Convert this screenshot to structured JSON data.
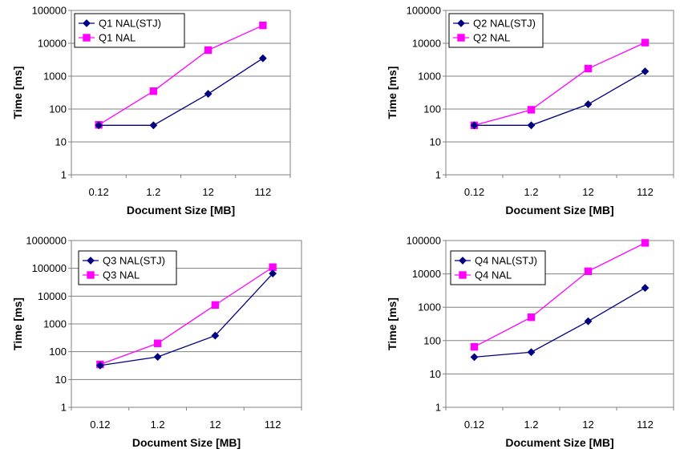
{
  "chart_data": [
    {
      "type": "line",
      "categories": [
        "0.12",
        "1.2",
        "12",
        "112"
      ],
      "xlabel": "Document Size [MB]",
      "ylabel": "Time [ms]",
      "yscale": "log",
      "ylim": [
        1,
        100000
      ],
      "yticks": [
        "1",
        "10",
        "100",
        "1000",
        "10000",
        "100000"
      ],
      "grid": true,
      "legend": "top-left",
      "series": [
        {
          "name": "Q1 NAL(STJ)",
          "color": "#000080",
          "marker": "diamond",
          "values": [
            32,
            32,
            290,
            3500
          ]
        },
        {
          "name": "Q1 NAL",
          "color": "#ff00ff",
          "marker": "square",
          "values": [
            33,
            350,
            6200,
            35000
          ]
        }
      ]
    },
    {
      "type": "line",
      "categories": [
        "0.12",
        "1.2",
        "12",
        "112"
      ],
      "xlabel": "Document Size [MB]",
      "ylabel": "Time [ms]",
      "yscale": "log",
      "ylim": [
        1,
        100000
      ],
      "yticks": [
        "1",
        "10",
        "100",
        "1000",
        "10000",
        "100000"
      ],
      "grid": true,
      "legend": "top-left",
      "series": [
        {
          "name": "Q2 NAL(STJ)",
          "color": "#000080",
          "marker": "diamond",
          "values": [
            32,
            32,
            140,
            1400
          ]
        },
        {
          "name": "Q2 NAL",
          "color": "#ff00ff",
          "marker": "square",
          "values": [
            32,
            95,
            1700,
            10500
          ]
        }
      ]
    },
    {
      "type": "line",
      "categories": [
        "0.12",
        "1.2",
        "12",
        "112"
      ],
      "xlabel": "Document Size [MB]",
      "ylabel": "Time [ms]",
      "yscale": "log",
      "ylim": [
        1,
        1000000
      ],
      "yticks": [
        "1",
        "10",
        "100",
        "1000",
        "10000",
        "100000",
        "1000000"
      ],
      "grid": true,
      "legend": "top-left",
      "series": [
        {
          "name": "Q3 NAL(STJ)",
          "color": "#000080",
          "marker": "diamond",
          "values": [
            32,
            65,
            380,
            65000
          ]
        },
        {
          "name": "Q3 NAL",
          "color": "#ff00ff",
          "marker": "square",
          "values": [
            35,
            200,
            4800,
            110000
          ]
        }
      ]
    },
    {
      "type": "line",
      "categories": [
        "0.12",
        "1.2",
        "12",
        "112"
      ],
      "xlabel": "Document Size [MB]",
      "ylabel": "Time [ms]",
      "yscale": "log",
      "ylim": [
        1,
        100000
      ],
      "yticks": [
        "1",
        "10",
        "100",
        "1000",
        "10000",
        "100000"
      ],
      "grid": true,
      "legend": "top-left",
      "series": [
        {
          "name": "Q4 NAL(STJ)",
          "color": "#000080",
          "marker": "diamond",
          "values": [
            32,
            45,
            380,
            3800
          ]
        },
        {
          "name": "Q4 NAL",
          "color": "#ff00ff",
          "marker": "square",
          "values": [
            65,
            500,
            12000,
            85000
          ]
        }
      ]
    }
  ]
}
